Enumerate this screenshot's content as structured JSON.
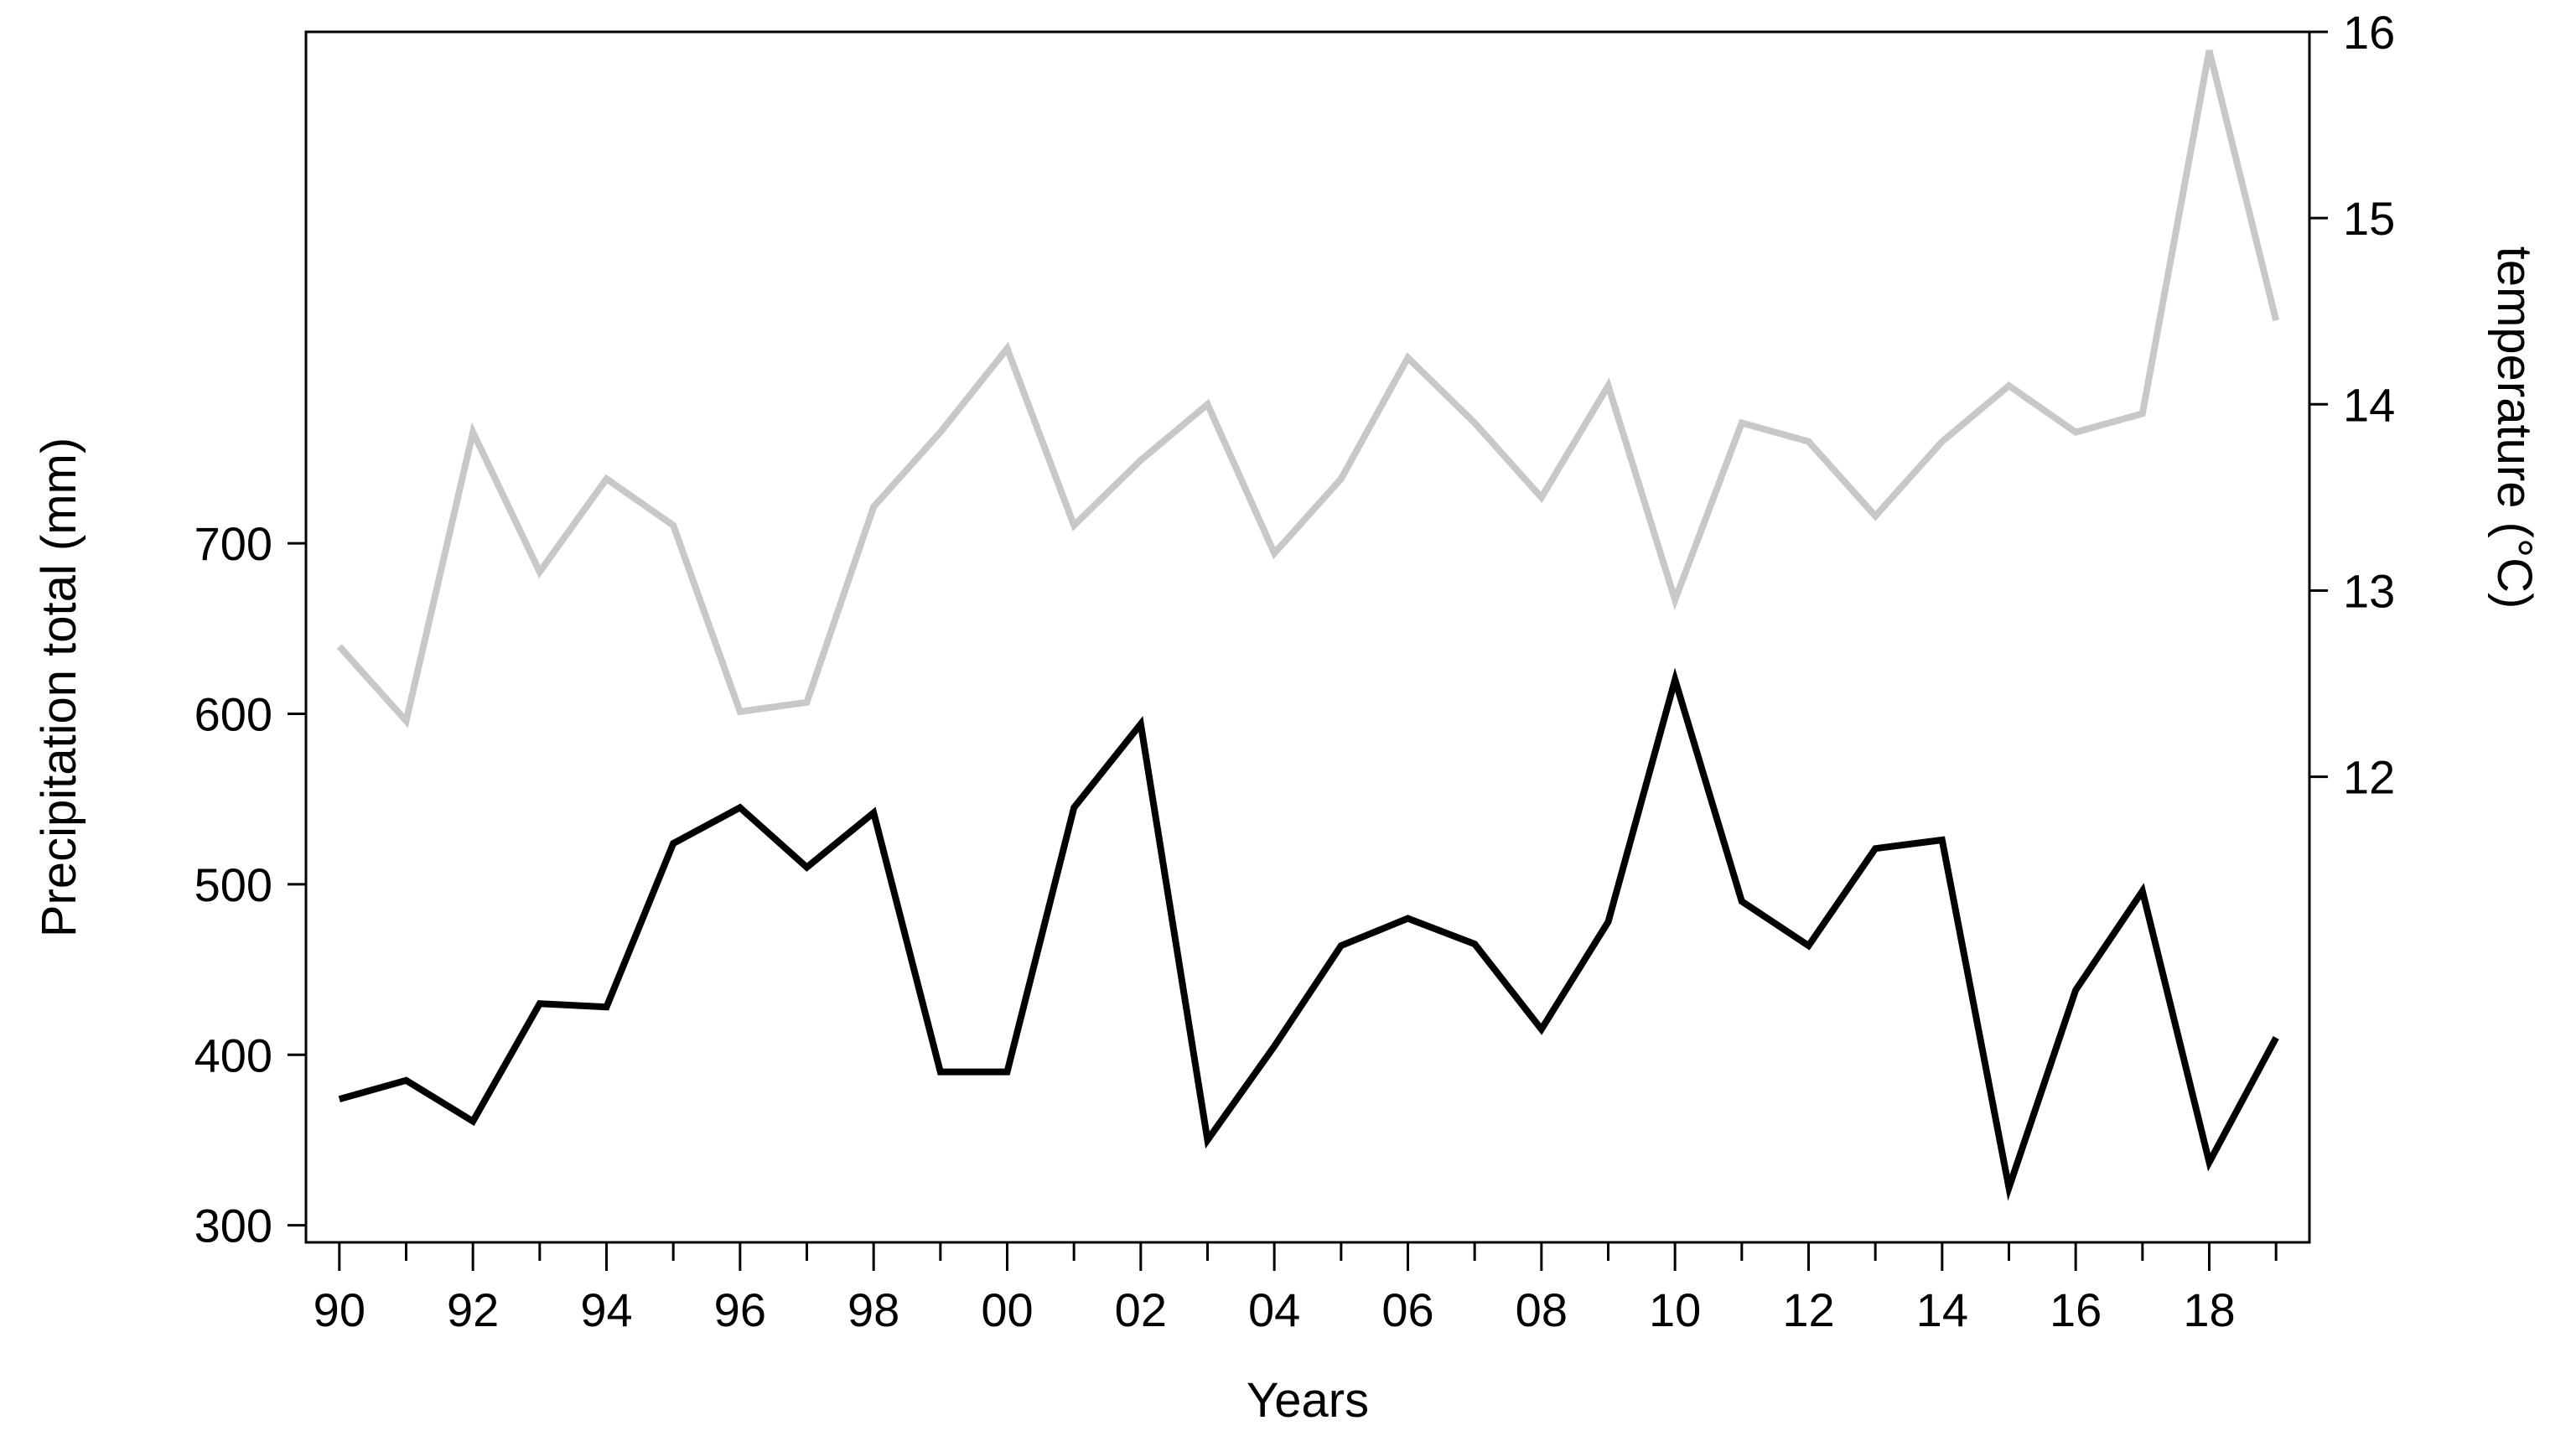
{
  "chart_data": {
    "type": "line",
    "xlabel": "Years",
    "ylabel": "Precipitation total (mm)",
    "y2label": "temperature (°C)",
    "x": [
      1990,
      1991,
      1992,
      1993,
      1994,
      1995,
      1996,
      1997,
      1998,
      1999,
      2000,
      2001,
      2002,
      2003,
      2004,
      2005,
      2006,
      2007,
      2008,
      2009,
      2010,
      2011,
      2012,
      2013,
      2014,
      2015,
      2016,
      2017,
      2018,
      2019
    ],
    "xlim": [
      1989.5,
      2019.5
    ],
    "x_tick_labels": [
      "90",
      "92",
      "94",
      "96",
      "98",
      "00",
      "02",
      "04",
      "06",
      "08",
      "10",
      "12",
      "14",
      "16",
      "18"
    ],
    "ylim": [
      290,
      1000
    ],
    "y_ticks": [
      300,
      400,
      500,
      600,
      700
    ],
    "y2lim": [
      9.5,
      16
    ],
    "y2_ticks": [
      12,
      13,
      14,
      15,
      16
    ],
    "grid": false,
    "series": [
      {
        "axis": "left",
        "color": "#000000",
        "values": [
          374,
          385,
          361,
          430,
          428,
          524,
          545,
          510,
          542,
          390,
          390,
          545,
          594,
          350,
          405,
          464,
          480,
          465,
          415,
          478,
          620,
          490,
          464,
          521,
          526,
          322,
          438,
          496,
          337,
          410
        ]
      },
      {
        "axis": "right",
        "color": "#c8c8c8",
        "values": [
          12.7,
          12.3,
          13.85,
          13.1,
          13.6,
          13.35,
          12.35,
          12.4,
          13.45,
          13.85,
          14.3,
          13.35,
          13.7,
          14.0,
          13.2,
          13.6,
          14.25,
          13.9,
          13.5,
          14.1,
          12.95,
          13.9,
          13.8,
          13.4,
          13.8,
          14.1,
          13.85,
          13.95,
          15.9,
          14.45
        ]
      }
    ]
  }
}
